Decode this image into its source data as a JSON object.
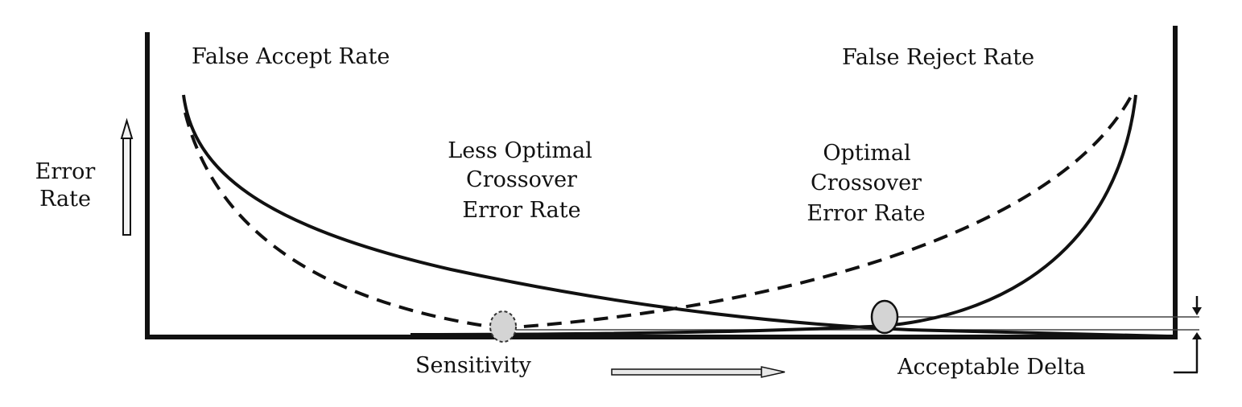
{
  "labels": {
    "false_accept": "False Accept Rate",
    "false_reject": "False Reject Rate",
    "less_optimal": [
      "Less Optimal",
      "Crossover",
      "Error Rate"
    ],
    "optimal": [
      "Optimal",
      "Crossover",
      "Error Rate"
    ],
    "y_axis": [
      "Error",
      "Rate"
    ],
    "x_axis": "Sensitivity",
    "delta": "Acceptable Delta"
  },
  "colors": {
    "ink": "#111111",
    "marker_fill": "#d4d4d4",
    "background": "#ffffff"
  },
  "icons": {
    "y_arrow": "up-arrow-icon",
    "x_arrow": "right-arrow-icon",
    "delta_down": "down-arrow-icon",
    "delta_up": "up-arrow-icon"
  }
}
